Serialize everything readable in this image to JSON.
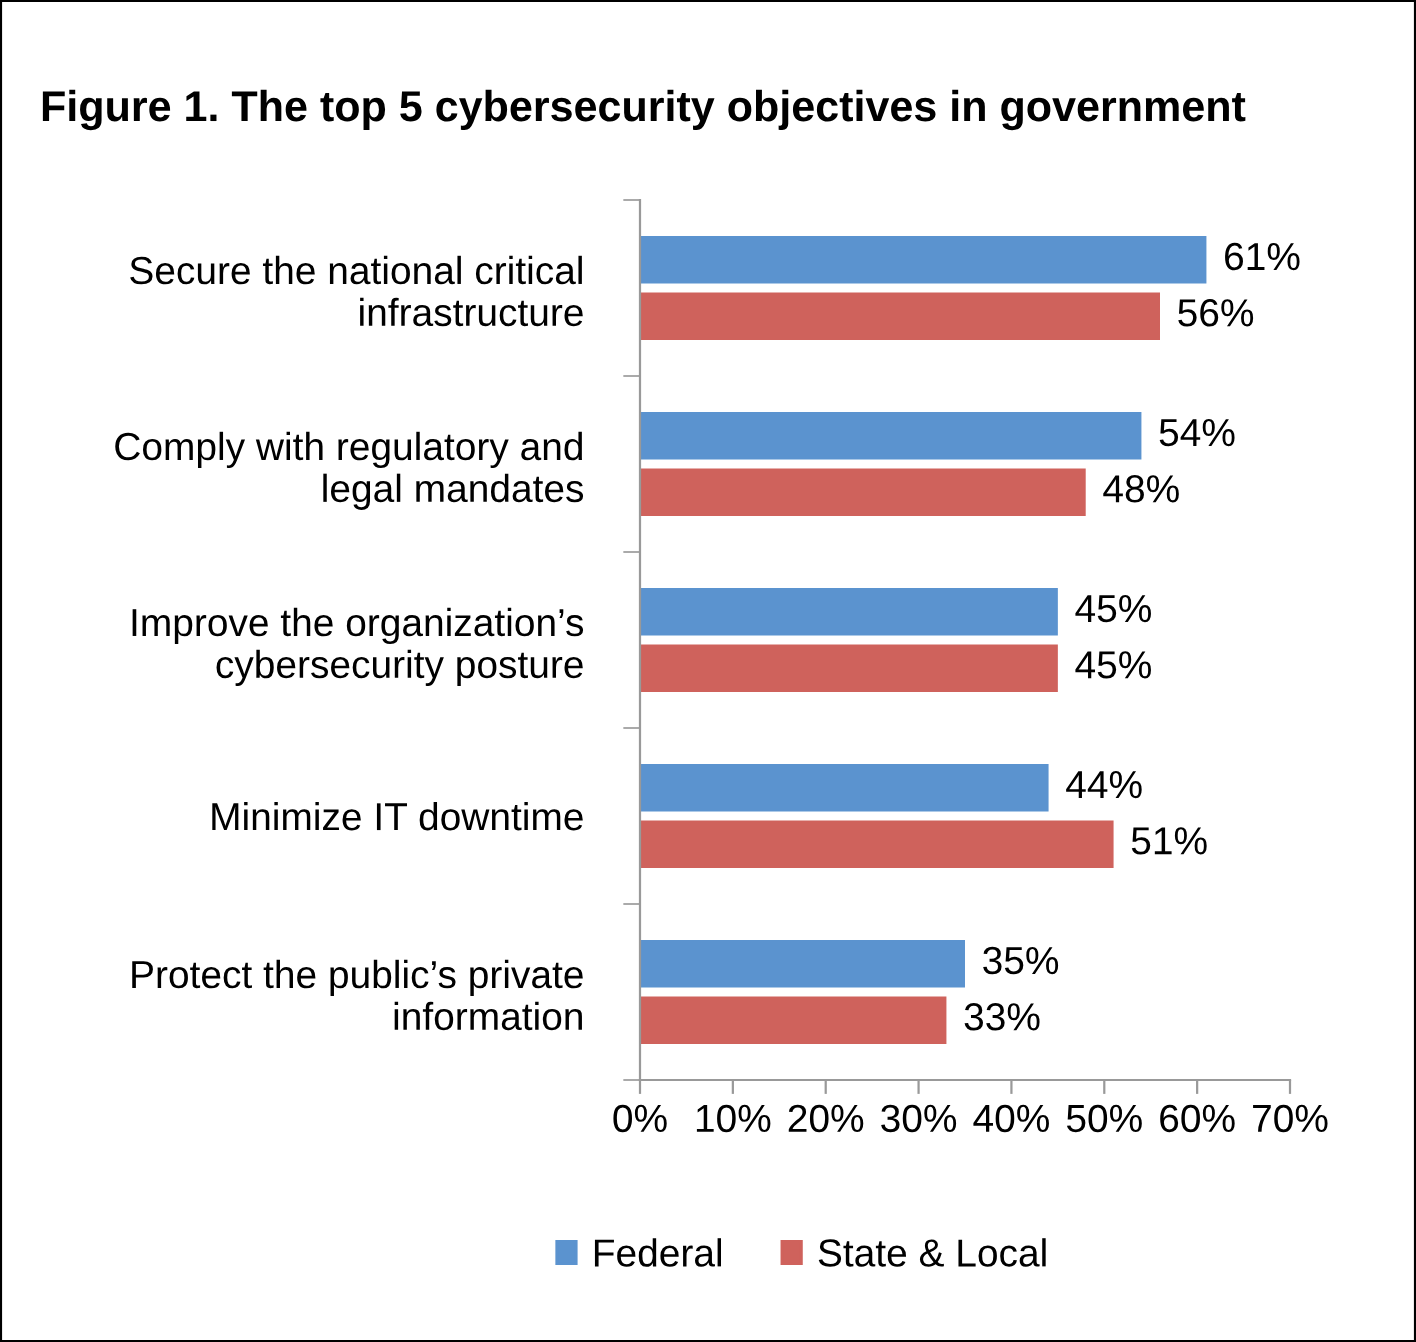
{
  "chart_data": {
    "type": "bar",
    "orientation": "horizontal",
    "title": "Figure 1. The top 5 cybersecurity objectives in government",
    "categories": [
      "Secure the national critical\ninfrastructure",
      "Comply with regulatory and\nlegal mandates",
      "Improve the organization’s\ncybersecurity posture",
      "Minimize IT downtime",
      "Protect the public’s private\ninformation"
    ],
    "series": [
      {
        "name": "Federal",
        "color": "#5b93cf",
        "values": [
          61,
          54,
          45,
          44,
          35
        ],
        "value_labels": [
          "61%",
          "54%",
          "45%",
          "44%",
          "35%"
        ]
      },
      {
        "name": "State & Local",
        "color": "#cf625c",
        "values": [
          56,
          48,
          45,
          51,
          33
        ],
        "value_labels": [
          "56%",
          "48%",
          "45%",
          "51%",
          "33%"
        ]
      }
    ],
    "xlim": [
      0,
      70
    ],
    "xticks": [
      {
        "value": 0,
        "label": "0%"
      },
      {
        "value": 10,
        "label": "10%"
      },
      {
        "value": 20,
        "label": "20%"
      },
      {
        "value": 30,
        "label": "30%"
      },
      {
        "value": 40,
        "label": "40%"
      },
      {
        "value": 50,
        "label": "50%"
      },
      {
        "value": 60,
        "label": "60%"
      },
      {
        "value": 70,
        "label": "70%"
      }
    ],
    "grid": false,
    "legend": "bottom"
  }
}
